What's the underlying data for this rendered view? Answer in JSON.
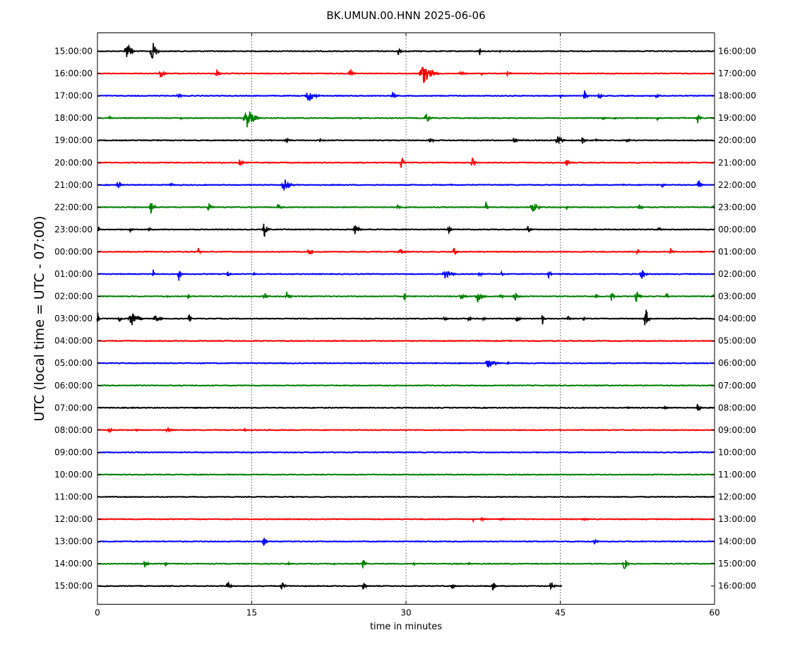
{
  "chart_data": {
    "type": "line",
    "title": "BK.UMUN.00.HNN 2025-06-06",
    "xlabel": "time in minutes",
    "ylabel": "UTC (local time = UTC - 07:00)",
    "xlim": [
      0,
      60
    ],
    "x_ticks": [
      "0",
      "15",
      "30",
      "45",
      "60"
    ],
    "grid": "vertical dotted lines at 15, 30, 45 min",
    "trace_color_cycle": [
      "#000000",
      "#ff0000",
      "#0000ff",
      "#008000"
    ],
    "left_labels": [
      "15:00:00",
      "16:00:00",
      "17:00:00",
      "18:00:00",
      "19:00:00",
      "20:00:00",
      "21:00:00",
      "22:00:00",
      "23:00:00",
      "00:00:00",
      "01:00:00",
      "02:00:00",
      "03:00:00",
      "04:00:00",
      "05:00:00",
      "06:00:00",
      "07:00:00",
      "08:00:00",
      "09:00:00",
      "10:00:00",
      "11:00:00",
      "12:00:00",
      "13:00:00",
      "14:00:00",
      "15:00:00"
    ],
    "right_labels": [
      "16:00:00",
      "17:00:00",
      "18:00:00",
      "19:00:00",
      "20:00:00",
      "21:00:00",
      "22:00:00",
      "23:00:00",
      "00:00:00",
      "01:00:00",
      "02:00:00",
      "03:00:00",
      "04:00:00",
      "05:00:00",
      "06:00:00",
      "07:00:00",
      "08:00:00",
      "09:00:00",
      "10:00:00",
      "11:00:00",
      "12:00:00",
      "13:00:00",
      "14:00:00",
      "15:00:00",
      "16:00:00"
    ],
    "last_trace_end_minute": 45.2,
    "bursts": [
      [
        [
          3.1,
          1.0,
          1.6
        ],
        [
          5.6,
          1.0,
          1.6
        ],
        [
          29.4,
          0.5,
          0.7
        ],
        [
          37.3,
          0.5,
          0.6
        ],
        [
          39.2,
          0.2,
          0.15
        ],
        [
          51.0,
          0.2,
          0.1
        ]
      ],
      [
        [
          6.4,
          0.9,
          0.8
        ],
        [
          11.8,
          0.7,
          0.6
        ],
        [
          24.8,
          0.8,
          0.7
        ],
        [
          32.2,
          2.0,
          1.4
        ],
        [
          35.6,
          0.9,
          0.4
        ],
        [
          37.5,
          0.6,
          0.3
        ],
        [
          40.0,
          0.5,
          0.5
        ]
      ],
      [
        [
          8.0,
          0.6,
          0.5
        ],
        [
          20.9,
          1.5,
          0.9
        ],
        [
          28.9,
          0.8,
          0.6
        ],
        [
          45.2,
          0.6,
          0.2
        ],
        [
          47.5,
          0.6,
          0.8
        ],
        [
          48.9,
          0.6,
          0.8
        ],
        [
          54.5,
          0.6,
          0.4
        ]
      ],
      [
        [
          1.3,
          0.6,
          0.3
        ],
        [
          8.2,
          0.3,
          0.2
        ],
        [
          15.0,
          1.8,
          1.3
        ],
        [
          25.6,
          0.2,
          0.2
        ],
        [
          32.2,
          0.9,
          0.8
        ],
        [
          49.3,
          0.6,
          0.4
        ],
        [
          50.4,
          0.4,
          0.2
        ],
        [
          52.5,
          0.3,
          0.2
        ],
        [
          54.6,
          0.5,
          0.4
        ],
        [
          57.1,
          0.2,
          0.2
        ],
        [
          58.5,
          0.6,
          0.8
        ]
      ],
      [
        [
          5.1,
          0.2,
          0.1
        ],
        [
          6.0,
          0.4,
          0.1
        ],
        [
          16.9,
          0.4,
          0.2
        ],
        [
          18.6,
          1.0,
          0.3
        ],
        [
          21.8,
          0.6,
          0.3
        ],
        [
          32.5,
          0.7,
          0.7
        ],
        [
          40.6,
          0.6,
          0.6
        ],
        [
          42.0,
          0.2,
          0.2
        ],
        [
          45.0,
          1.0,
          0.8
        ],
        [
          47.3,
          0.6,
          0.5
        ],
        [
          48.6,
          0.4,
          0.2
        ],
        [
          51.6,
          0.6,
          0.4
        ]
      ],
      [
        [
          14.0,
          0.6,
          0.6
        ],
        [
          29.7,
          0.6,
          0.9
        ],
        [
          36.6,
          0.6,
          0.8
        ],
        [
          45.8,
          0.8,
          0.5
        ]
      ],
      [
        [
          2.2,
          0.8,
          0.7
        ],
        [
          7.3,
          0.7,
          0.4
        ],
        [
          18.5,
          1.3,
          1.0
        ],
        [
          34.5,
          0.3,
          0.1
        ],
        [
          51.2,
          0.3,
          0.1
        ],
        [
          55.1,
          0.6,
          0.6
        ],
        [
          58.6,
          0.6,
          0.9
        ]
      ],
      [
        [
          5.4,
          0.8,
          0.9
        ],
        [
          11.0,
          0.7,
          0.6
        ],
        [
          17.8,
          0.8,
          0.5
        ],
        [
          24.0,
          0.2,
          0.1
        ],
        [
          29.3,
          0.5,
          0.4
        ],
        [
          37.9,
          0.5,
          0.7
        ],
        [
          42.6,
          1.2,
          0.9
        ],
        [
          45.7,
          0.3,
          0.4
        ],
        [
          52.8,
          0.7,
          0.6
        ],
        [
          59.9,
          0.2,
          0.3
        ]
      ],
      [
        [
          0.2,
          0.3,
          0.4
        ],
        [
          3.3,
          0.5,
          0.4
        ],
        [
          5.2,
          0.6,
          0.4
        ],
        [
          16.4,
          0.8,
          1.2
        ],
        [
          25.3,
          1.0,
          0.7
        ],
        [
          34.3,
          0.6,
          0.5
        ],
        [
          42.0,
          0.7,
          0.6
        ],
        [
          54.8,
          0.8,
          0.3
        ]
      ],
      [
        [
          9.9,
          0.5,
          0.8
        ],
        [
          20.7,
          0.6,
          0.7
        ],
        [
          29.8,
          1.2,
          0.4
        ],
        [
          34.8,
          0.6,
          0.6
        ],
        [
          49.2,
          0.2,
          0.2
        ],
        [
          52.6,
          0.4,
          0.6
        ],
        [
          55.9,
          0.6,
          0.6
        ],
        [
          58.7,
          0.5,
          0.2
        ]
      ],
      [
        [
          5.5,
          0.4,
          0.8
        ],
        [
          8.0,
          0.5,
          1.2
        ],
        [
          12.8,
          0.5,
          0.5
        ],
        [
          15.3,
          0.4,
          0.4
        ],
        [
          34.2,
          1.4,
          0.8
        ],
        [
          37.3,
          0.6,
          0.5
        ],
        [
          39.4,
          0.4,
          0.4
        ],
        [
          44.0,
          0.5,
          0.7
        ],
        [
          53.2,
          1.0,
          0.7
        ]
      ],
      [
        [
          6.9,
          0.3,
          0.2
        ],
        [
          8.9,
          0.4,
          0.7
        ],
        [
          16.4,
          0.7,
          0.7
        ],
        [
          18.6,
          0.7,
          0.7
        ],
        [
          29.9,
          0.3,
          1.0
        ],
        [
          35.6,
          0.8,
          0.6
        ],
        [
          37.3,
          1.3,
          0.8
        ],
        [
          39.3,
          0.5,
          0.7
        ],
        [
          40.8,
          0.9,
          0.7
        ],
        [
          48.6,
          0.5,
          0.4
        ],
        [
          50.1,
          0.5,
          0.8
        ],
        [
          52.6,
          0.8,
          0.8
        ],
        [
          55.4,
          0.4,
          0.8
        ],
        [
          59.9,
          0.2,
          0.3
        ]
      ],
      [
        [
          0.1,
          0.3,
          0.9
        ],
        [
          2.2,
          0.5,
          0.6
        ],
        [
          3.7,
          1.5,
          1.1
        ],
        [
          5.9,
          1.0,
          0.7
        ],
        [
          9.0,
          0.4,
          0.7
        ],
        [
          33.9,
          0.6,
          0.4
        ],
        [
          36.2,
          0.4,
          0.6
        ],
        [
          37.6,
          0.4,
          0.5
        ],
        [
          41.0,
          0.8,
          0.5
        ],
        [
          43.4,
          0.5,
          0.9
        ],
        [
          46.0,
          0.8,
          0.3
        ],
        [
          47.4,
          0.5,
          0.4
        ],
        [
          53.5,
          0.8,
          1.6
        ]
      ],
      [
        [
          23.2,
          0.8,
          0.06
        ]
      ],
      [
        [
          35.4,
          0.8,
          0.1
        ],
        [
          38.4,
          1.5,
          0.7
        ],
        [
          40.0,
          0.4,
          0.2
        ],
        [
          41.4,
          0.3,
          0.1
        ],
        [
          25.6,
          0.3,
          0.05
        ]
      ],
      [
        [
          3.8,
          0.1,
          0.05
        ],
        [
          20.0,
          0.1,
          0.04
        ]
      ],
      [
        [
          3.5,
          0.1,
          0.1
        ],
        [
          10.0,
          1.5,
          0.1
        ],
        [
          11.7,
          0.1,
          0.15
        ],
        [
          49.7,
          0.1,
          0.1
        ],
        [
          51.7,
          0.8,
          0.15
        ],
        [
          55.3,
          0.7,
          0.35
        ],
        [
          58.5,
          0.6,
          0.7
        ]
      ],
      [
        [
          1.4,
          0.9,
          0.35
        ],
        [
          4.0,
          0.8,
          0.15
        ],
        [
          7.2,
          1.3,
          0.35
        ],
        [
          14.5,
          0.6,
          0.25
        ],
        [
          16.8,
          0.1,
          0.08
        ],
        [
          31.2,
          0.1,
          0.08
        ],
        [
          42.9,
          0.1,
          0.2
        ]
      ],
      [],
      [
        [
          3.6,
          0.1,
          0.05
        ],
        [
          35.8,
          0.1,
          0.05
        ]
      ],
      [],
      [
        [
          29.9,
          0.1,
          0.05
        ],
        [
          36.6,
          0.2,
          0.4
        ],
        [
          37.6,
          0.8,
          0.3
        ],
        [
          39.8,
          2.0,
          0.15
        ],
        [
          47.5,
          1.0,
          0.25
        ],
        [
          51.3,
          0.2,
          0.1
        ],
        [
          53.2,
          0.6,
          0.1
        ],
        [
          56.7,
          0.2,
          0.1
        ],
        [
          57.9,
          0.4,
          0.15
        ]
      ],
      [
        [
          16.3,
          0.6,
          0.7
        ],
        [
          29.8,
          0.1,
          0.08
        ],
        [
          48.5,
          0.7,
          0.5
        ]
      ],
      [
        [
          4.8,
          0.7,
          0.6
        ],
        [
          6.7,
          0.5,
          0.3
        ],
        [
          18.7,
          0.8,
          0.2
        ],
        [
          23.1,
          0.4,
          0.2
        ],
        [
          25.4,
          0.2,
          0.3
        ],
        [
          26.0,
          0.7,
          0.6
        ],
        [
          30.8,
          0.1,
          0.6
        ],
        [
          36.2,
          0.5,
          0.2
        ],
        [
          51.4,
          0.7,
          1.1
        ]
      ],
      [
        [
          12.8,
          0.6,
          0.7
        ],
        [
          18.1,
          0.8,
          0.7
        ],
        [
          26.0,
          0.6,
          0.6
        ],
        [
          34.6,
          0.6,
          0.6
        ],
        [
          38.6,
          0.6,
          0.6
        ],
        [
          44.3,
          0.8,
          0.7
        ]
      ]
    ]
  }
}
